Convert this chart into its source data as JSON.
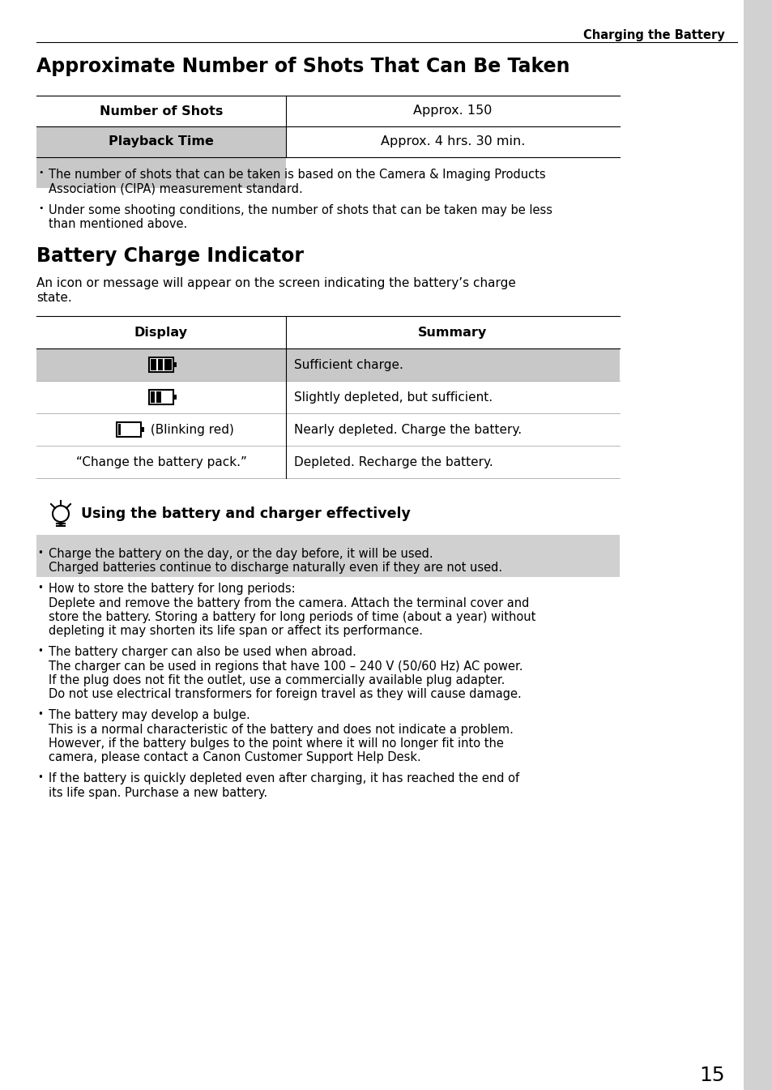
{
  "page_bg": "#ffffff",
  "header_text": "Charging the Battery",
  "title1": "Approximate Number of Shots That Can Be Taken",
  "title2": "Battery Charge Indicator",
  "tip_title": "Using the battery and charger effectively",
  "tip_bg": "#d0d0d0",
  "table_header_bg": "#c8c8c8",
  "table_line_color": "#aaaaaa",
  "sidebar_color": "#999999",
  "page_number": "15",
  "bullet1_line1": "The number of shots that can be taken is based on the Camera & Imaging Products",
  "bullet1_line2": "Association (CIPA) measurement standard.",
  "bullet2_line1": "Under some shooting conditions, the number of shots that can be taken may be less",
  "bullet2_line2": "than mentioned above.",
  "intro_line1": "An icon or message will appear on the screen indicating the battery’s charge",
  "intro_line2": "state."
}
